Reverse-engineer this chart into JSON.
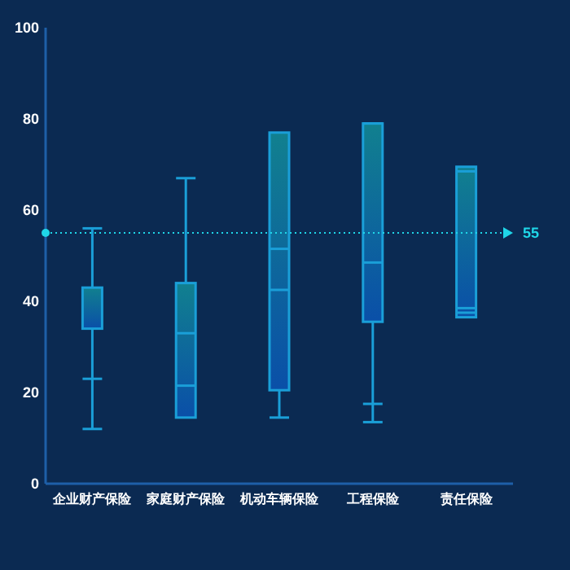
{
  "chart_data": {
    "type": "box",
    "categories": [
      "企业财产保险",
      "家庭财产保险",
      "机动车辆保险",
      "工程保险",
      "责任保险"
    ],
    "boxes": [
      {
        "low": 12,
        "q1": 34,
        "median": 23,
        "q3": 43,
        "high": 56
      },
      {
        "low": 21.5,
        "q1": 14.5,
        "median": 33,
        "q3": 44,
        "high": 67
      },
      {
        "low": 14.5,
        "q1": 20.5,
        "median": 42.5,
        "q3": 77,
        "high": 51.5
      },
      {
        "low": 13.5,
        "q1": 35.5,
        "median": 48.5,
        "q3": 79,
        "high": 79,
        "mean": 17.5
      },
      {
        "low": 37.5,
        "q1": 36.5,
        "median": 38.5,
        "q3": 69.5,
        "high": 68.5
      }
    ],
    "color": "#1a9fd8",
    "ylim": [
      0,
      100
    ],
    "yticks": [
      0,
      20,
      40,
      60,
      80,
      100
    ],
    "ref_lines": [
      {
        "axis": "y",
        "value": 55,
        "label": "55",
        "color": "#1fd6e8",
        "line_style": "dotted"
      }
    ],
    "grid": false
  }
}
